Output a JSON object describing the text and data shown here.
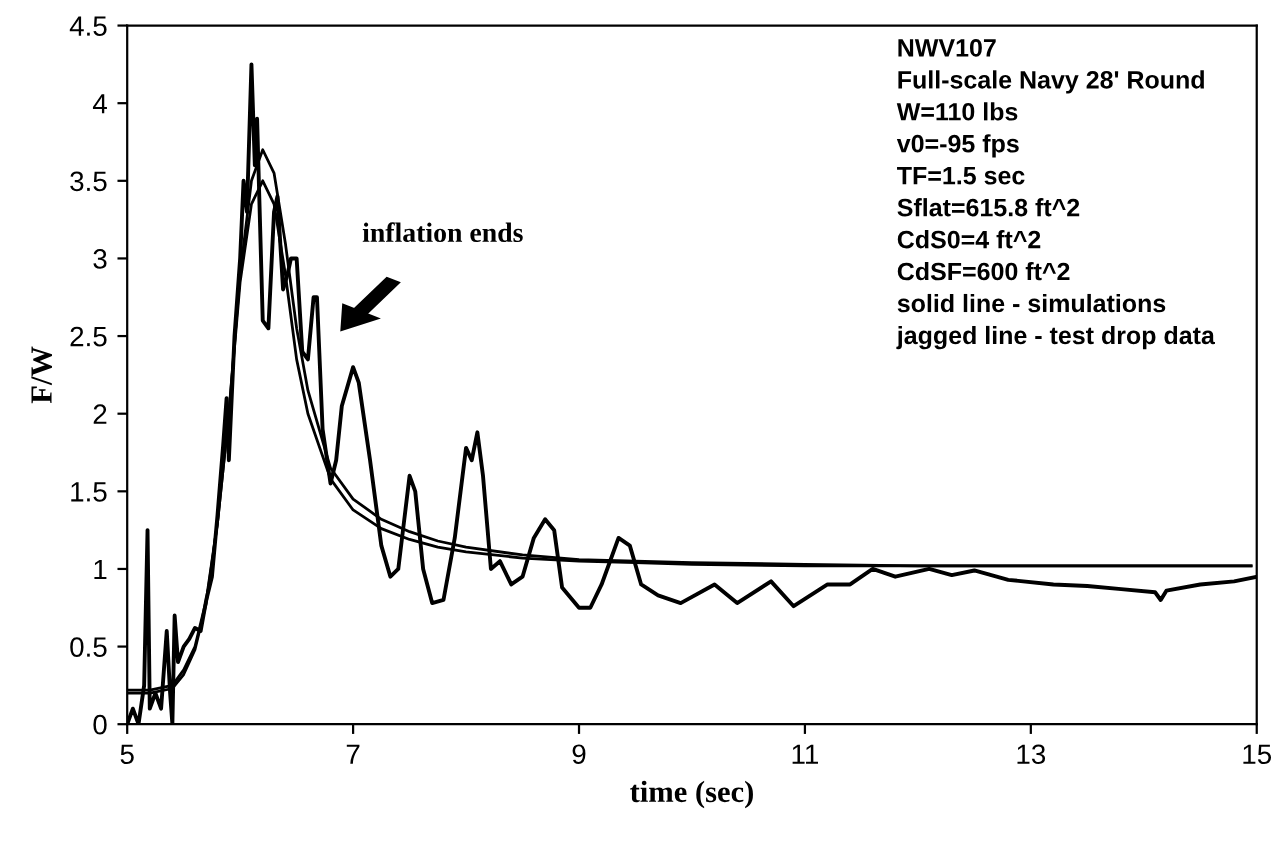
{
  "chart_data": {
    "type": "line",
    "xlabel": "time (sec)",
    "ylabel": "F/W",
    "xlim": [
      5,
      15
    ],
    "xticks": [
      5,
      7,
      9,
      11,
      13,
      15
    ],
    "ylim": [
      0,
      4.5
    ],
    "yticks": [
      0,
      0.5,
      1,
      1.5,
      2,
      2.5,
      3,
      3.5,
      4,
      4.5
    ],
    "grid": false,
    "legend": false,
    "marker": "none",
    "line_style": "solid",
    "annotations": [
      "inflation ends",
      "NWV107",
      "Full-scale Navy 28' Round",
      "W=110 lbs",
      "v0=-95 fps",
      "TF=1.5 sec",
      "Sflat=615.8 ft^2",
      "CdS0=4 ft^2",
      "CdSF=600 ft^2",
      "solid line - simulations",
      "jagged line - test drop data"
    ],
    "series": [
      {
        "color": "#000000",
        "x": [
          5.0,
          5.2,
          5.4,
          5.5,
          5.6,
          5.7,
          5.8,
          5.9,
          6.0,
          6.1,
          6.2,
          6.3,
          6.4,
          6.5,
          6.6,
          6.8,
          7.0,
          7.25,
          7.5,
          7.75,
          8.0,
          8.5,
          9.0,
          9.5,
          10.0,
          11.0,
          12.0,
          13.0,
          14.0,
          14.95
        ],
        "values": [
          0.22,
          0.22,
          0.25,
          0.35,
          0.5,
          0.8,
          1.3,
          2.0,
          2.9,
          3.5,
          3.7,
          3.55,
          3.1,
          2.55,
          2.15,
          1.65,
          1.45,
          1.32,
          1.24,
          1.18,
          1.14,
          1.09,
          1.06,
          1.05,
          1.04,
          1.03,
          1.02,
          1.02,
          1.02,
          1.02
        ]
      },
      {
        "color": "#000000",
        "x": [
          5.0,
          5.2,
          5.4,
          5.5,
          5.6,
          5.7,
          5.8,
          5.9,
          6.0,
          6.1,
          6.2,
          6.3,
          6.4,
          6.5,
          6.6,
          6.8,
          7.0,
          7.25,
          7.5,
          7.75,
          8.0,
          8.5,
          9.0,
          9.5,
          10.0,
          11.0,
          12.0,
          13.0,
          14.0,
          14.95
        ],
        "values": [
          0.2,
          0.2,
          0.23,
          0.32,
          0.48,
          0.78,
          1.3,
          2.0,
          2.85,
          3.35,
          3.5,
          3.35,
          2.9,
          2.35,
          2.0,
          1.58,
          1.38,
          1.26,
          1.19,
          1.14,
          1.11,
          1.07,
          1.05,
          1.04,
          1.03,
          1.02,
          1.02,
          1.02,
          1.02,
          1.02
        ]
      },
      {
        "color": "#000000",
        "x": [
          5.0,
          5.05,
          5.1,
          5.15,
          5.18,
          5.2,
          5.25,
          5.3,
          5.35,
          5.38,
          5.4,
          5.42,
          5.45,
          5.5,
          5.55,
          5.6,
          5.65,
          5.7,
          5.75,
          5.8,
          5.85,
          5.88,
          5.9,
          5.95,
          6.0,
          6.03,
          6.06,
          6.1,
          6.13,
          6.15,
          6.2,
          6.25,
          6.3,
          6.33,
          6.38,
          6.42,
          6.45,
          6.5,
          6.55,
          6.6,
          6.65,
          6.68,
          6.73,
          6.8,
          6.85,
          6.9,
          7.0,
          7.05,
          7.15,
          7.25,
          7.33,
          7.4,
          7.45,
          7.5,
          7.55,
          7.62,
          7.7,
          7.8,
          7.9,
          8.0,
          8.05,
          8.1,
          8.15,
          8.22,
          8.3,
          8.4,
          8.5,
          8.6,
          8.7,
          8.78,
          8.85,
          9.0,
          9.1,
          9.2,
          9.35,
          9.45,
          9.55,
          9.7,
          9.9,
          10.2,
          10.4,
          10.7,
          10.9,
          11.2,
          11.4,
          11.6,
          11.8,
          12.1,
          12.3,
          12.5,
          12.8,
          13.2,
          13.5,
          13.8,
          14.1,
          14.15,
          14.2,
          14.5,
          14.8,
          15.0
        ],
        "values": [
          0,
          0.1,
          0,
          0.25,
          1.25,
          0.1,
          0.2,
          0.1,
          0.6,
          0.2,
          0,
          0.7,
          0.4,
          0.5,
          0.55,
          0.62,
          0.6,
          0.8,
          0.95,
          1.35,
          1.8,
          2.1,
          1.7,
          2.5,
          3.0,
          3.5,
          3.3,
          4.25,
          3.6,
          3.9,
          2.6,
          2.55,
          3.3,
          3.4,
          2.8,
          2.9,
          3.0,
          3.0,
          2.4,
          2.35,
          2.75,
          2.75,
          1.9,
          1.55,
          1.7,
          2.05,
          2.3,
          2.2,
          1.7,
          1.15,
          0.95,
          1.0,
          1.3,
          1.6,
          1.5,
          1.0,
          0.78,
          0.8,
          1.2,
          1.78,
          1.7,
          1.88,
          1.6,
          1.0,
          1.05,
          0.9,
          0.95,
          1.2,
          1.32,
          1.25,
          0.88,
          0.75,
          0.75,
          0.9,
          1.2,
          1.15,
          0.9,
          0.83,
          0.78,
          0.9,
          0.78,
          0.92,
          0.76,
          0.9,
          0.9,
          1.0,
          0.95,
          1.0,
          0.96,
          0.99,
          0.93,
          0.9,
          0.89,
          0.87,
          0.85,
          0.8,
          0.86,
          0.9,
          0.92,
          0.95
        ]
      }
    ]
  }
}
